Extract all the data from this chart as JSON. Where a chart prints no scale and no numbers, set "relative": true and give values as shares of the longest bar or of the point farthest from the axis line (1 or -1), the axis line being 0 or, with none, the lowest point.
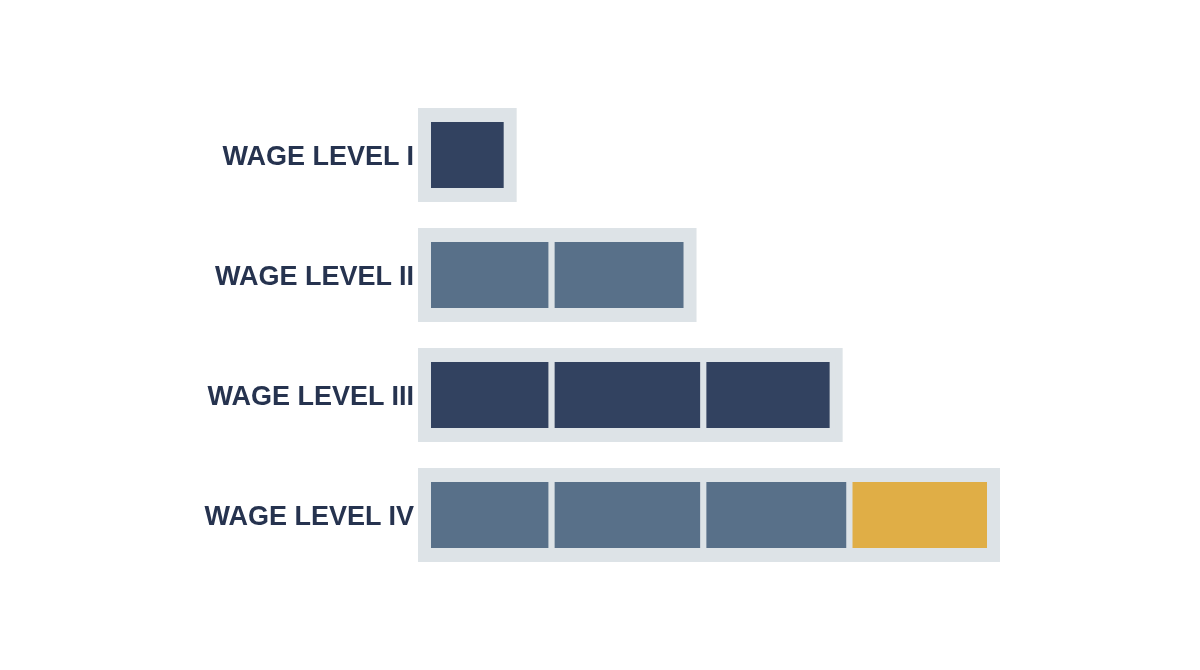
{
  "chart_data": {
    "type": "bar",
    "orientation": "horizontal",
    "stacked": true,
    "relative": true,
    "categories": [
      "WAGE LEVEL I",
      "WAGE LEVEL II",
      "WAGE LEVEL III",
      "WAGE LEVEL IV"
    ],
    "series": [
      {
        "colors": [
          "#324260",
          "#587089",
          "#324260",
          "#587089"
        ],
        "values": [
          0.14,
          0.22,
          0.22,
          0.22
        ]
      },
      {
        "colors": [
          null,
          "#587089",
          "#324260",
          "#587089"
        ],
        "values": [
          null,
          0.24,
          0.27,
          0.27
        ]
      },
      {
        "colors": [
          null,
          null,
          "#324260",
          "#587089"
        ],
        "values": [
          null,
          null,
          0.23,
          0.26
        ]
      },
      {
        "colors": [
          null,
          null,
          null,
          "#e0ae46"
        ],
        "values": [
          null,
          null,
          null,
          0.25
        ]
      }
    ]
  }
}
